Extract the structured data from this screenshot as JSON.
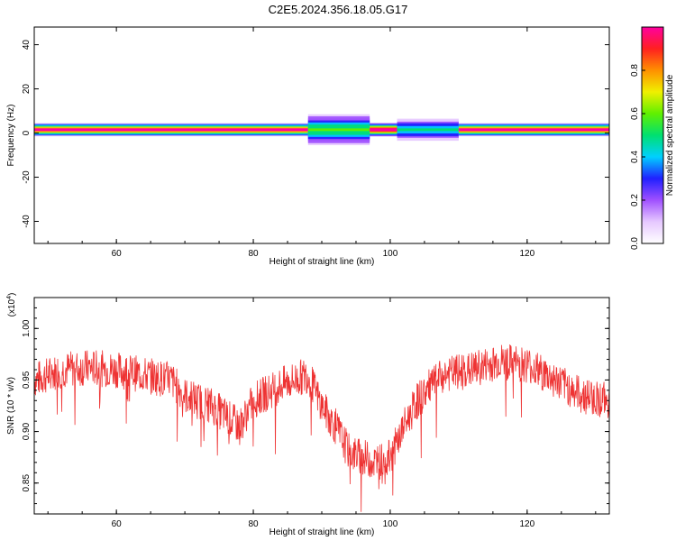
{
  "figure_title": "C2E5.2024.356.18.05.G17",
  "chart_data": [
    {
      "type": "heatmap",
      "xlabel": "Height of straight line (km)",
      "ylabel": "Frequency (Hz)",
      "xlim": [
        48,
        132
      ],
      "ylim": [
        -50,
        48
      ],
      "x_ticks": [
        60,
        80,
        100,
        120
      ],
      "y_ticks": [
        -40,
        -20,
        0,
        20,
        40
      ],
      "band": {
        "center_freq_hz": 1.5,
        "segments": [
          {
            "x": [
              48,
              88
            ],
            "half_width_hz": 1.5,
            "peak": 0.95
          },
          {
            "x": [
              88,
              97
            ],
            "half_width_hz": 3.5,
            "peak": 0.55
          },
          {
            "x": [
              97,
              101
            ],
            "half_width_hz": 1.5,
            "peak": 1.0
          },
          {
            "x": [
              101,
              110
            ],
            "half_width_hz": 2.5,
            "peak": 0.45
          },
          {
            "x": [
              110,
              132
            ],
            "half_width_hz": 1.5,
            "peak": 0.95
          }
        ]
      },
      "colorbar": {
        "label": "Normalized spectral amplitude",
        "range": [
          0,
          1
        ],
        "ticks": [
          "0.0",
          "0.2",
          "0.4",
          "0.6",
          "0.8"
        ],
        "ticks_values": [
          0,
          0.2,
          0.4,
          0.6,
          0.8
        ],
        "colors": [
          "#ffffff",
          "#e6c8ff",
          "#a050ff",
          "#2020ff",
          "#00d0ff",
          "#00e070",
          "#60f000",
          "#f0f000",
          "#ff9000",
          "#ff2020",
          "#ff00a0"
        ]
      }
    },
    {
      "type": "line",
      "xlabel": "Height of straight line (km)",
      "ylabel": "SNR (10 * v/v)",
      "y_multiplier": "(x10",
      "y_multiplier_exp": "4",
      "y_multiplier_close": ")",
      "xlim": [
        48,
        132
      ],
      "ylim": [
        0.82,
        1.03
      ],
      "x_ticks": [
        60,
        80,
        100,
        120
      ],
      "y_ticks": [
        0.85,
        0.9,
        0.95,
        1.0
      ],
      "y_tick_labels": [
        "0.85",
        "0.90",
        "0.95",
        "1.00"
      ],
      "color": "#ee3333",
      "series_trend": {
        "x": [
          48,
          52,
          56,
          60,
          64,
          68,
          70,
          72,
          74,
          76,
          78,
          80,
          84,
          88,
          90,
          92,
          94,
          96,
          98,
          100,
          102,
          104,
          106,
          108,
          112,
          116,
          120,
          124,
          128,
          132
        ],
        "y": [
          0.95,
          0.96,
          0.962,
          0.96,
          0.955,
          0.95,
          0.935,
          0.93,
          0.925,
          0.915,
          0.905,
          0.93,
          0.945,
          0.955,
          0.925,
          0.905,
          0.88,
          0.875,
          0.87,
          0.875,
          0.905,
          0.93,
          0.945,
          0.955,
          0.96,
          0.968,
          0.965,
          0.95,
          0.935,
          0.93
        ]
      },
      "noise_amplitude": 0.018
    }
  ]
}
